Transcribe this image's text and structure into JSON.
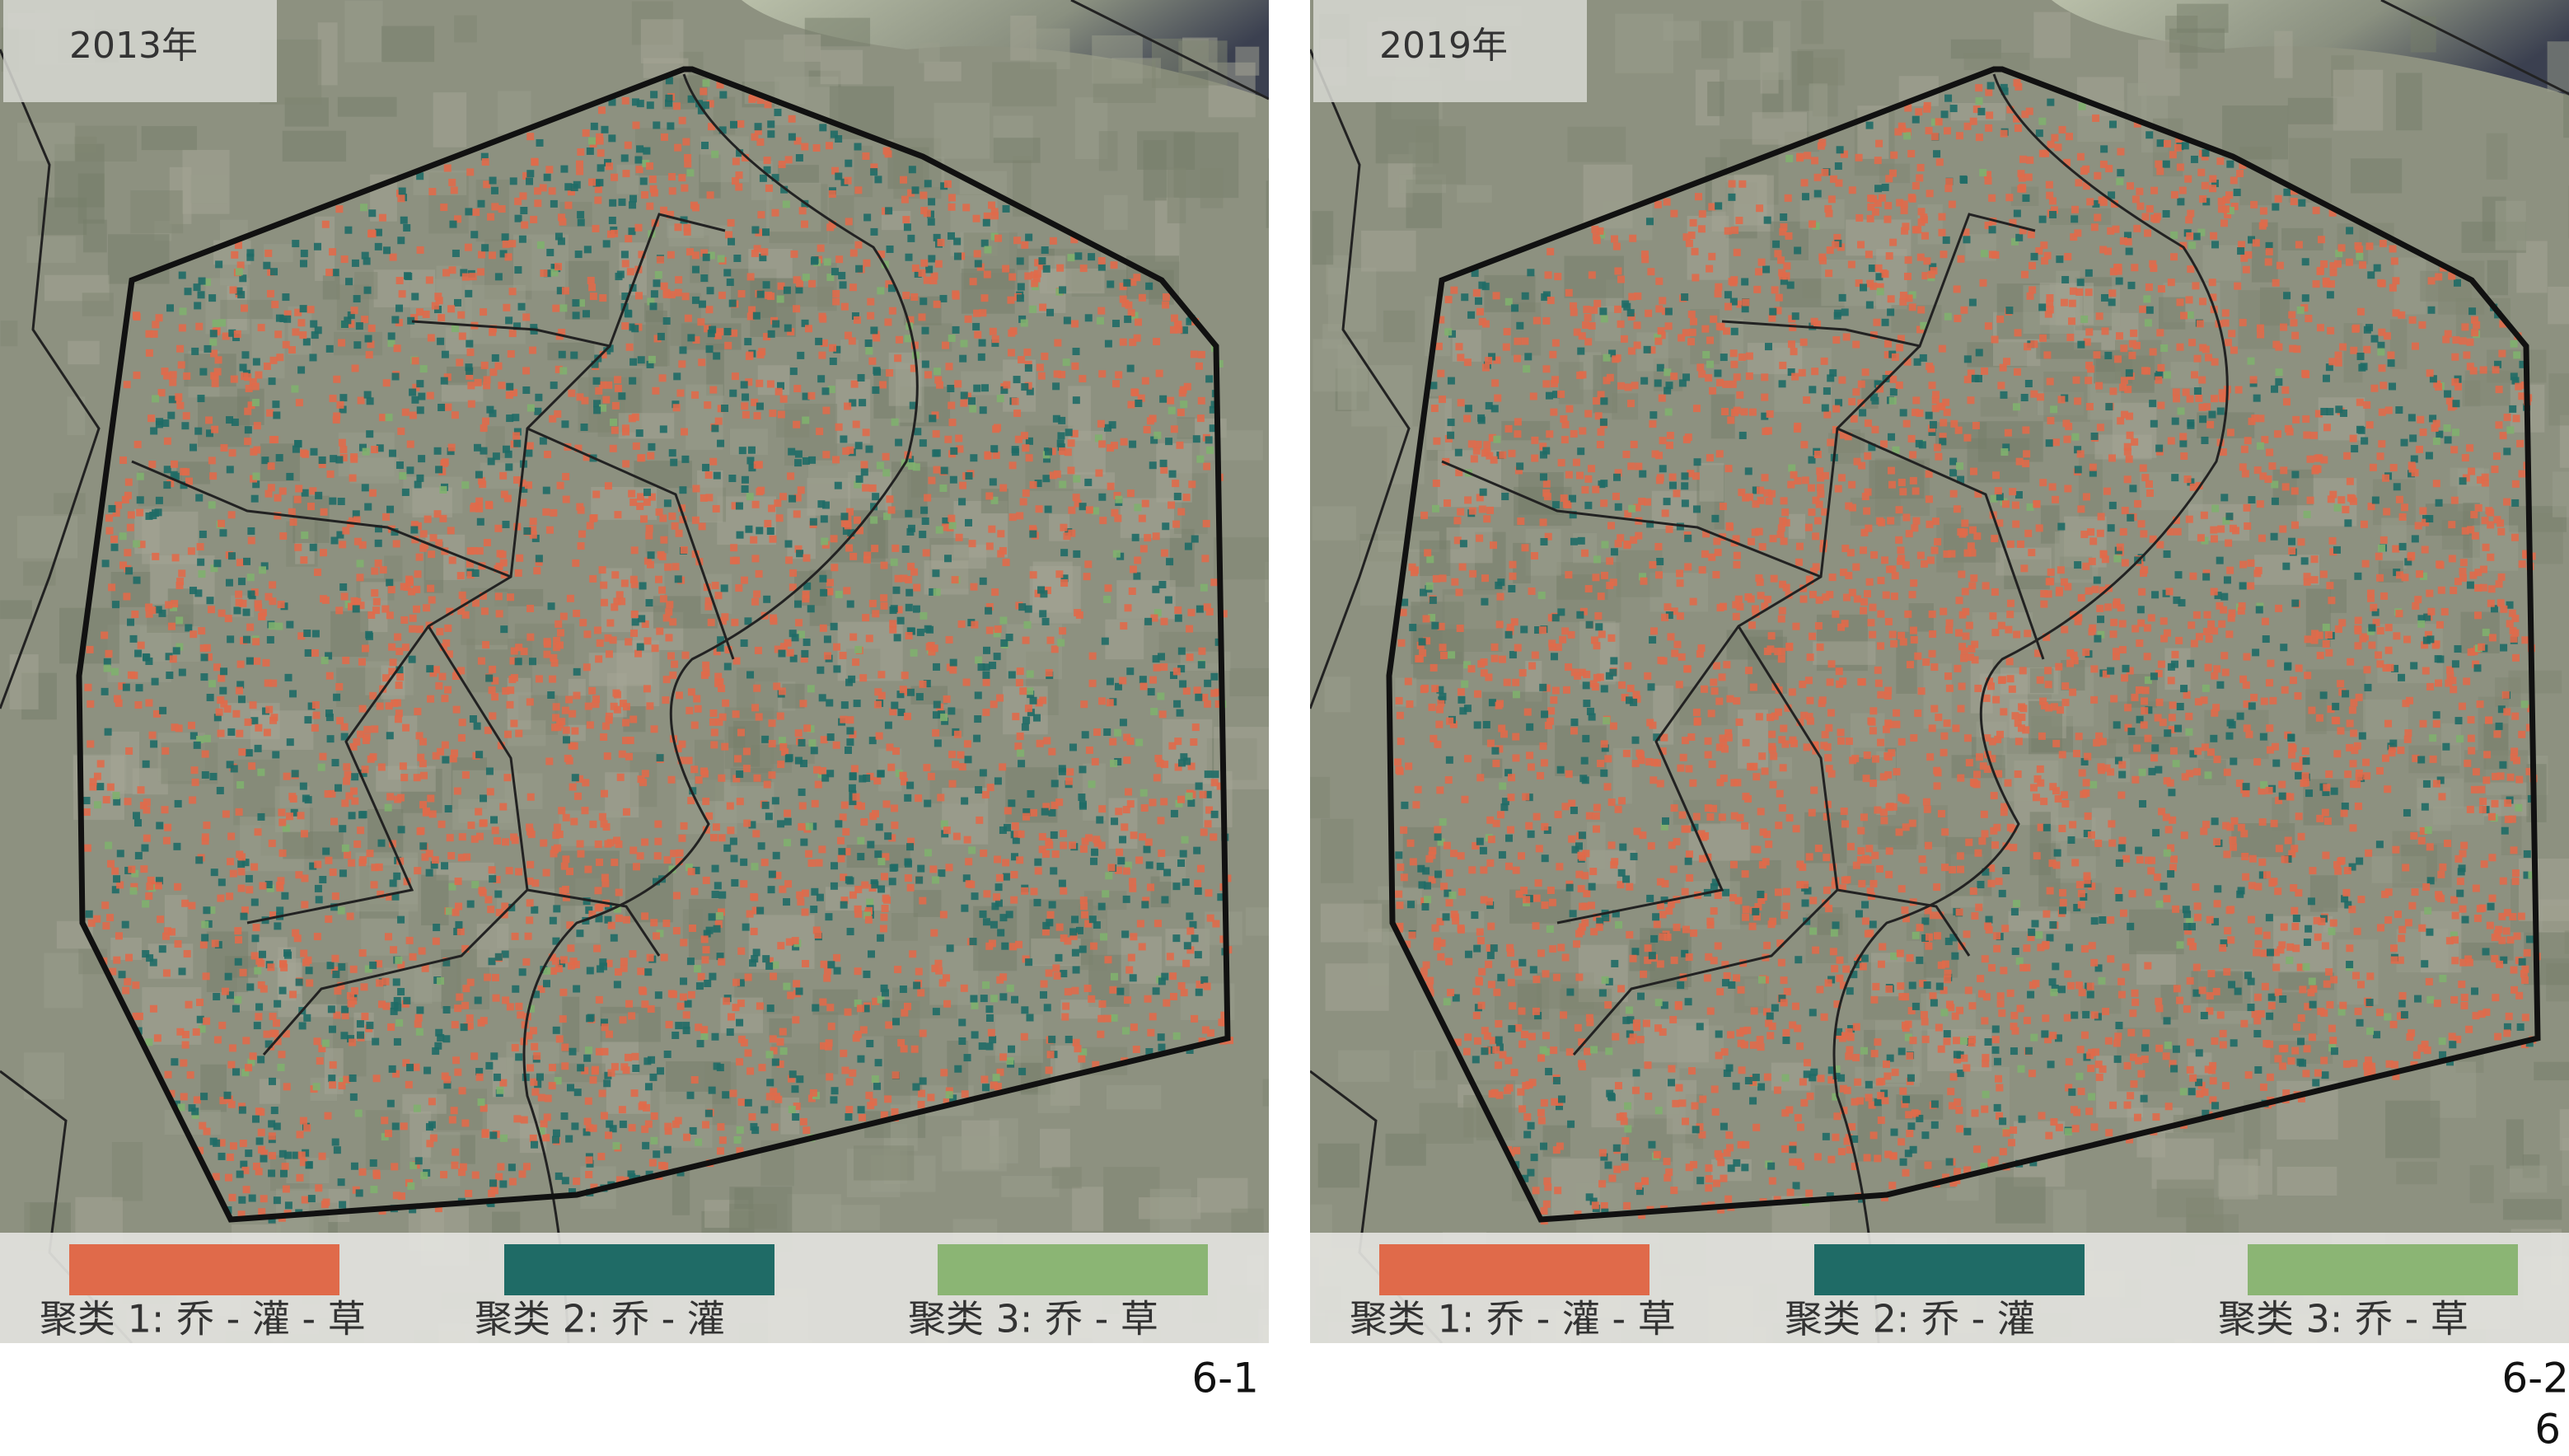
{
  "panels": [
    {
      "year": "2013年",
      "figure_label": "6-1",
      "legend": [
        "聚类 1: 乔 - 灌 - 草",
        "聚类 2: 乔 - 灌",
        "聚类 3: 乔 - 草"
      ]
    },
    {
      "year": "2019年",
      "figure_label": "6-2",
      "legend": [
        "聚类 1: 乔 - 灌 - 草",
        "聚类 2: 乔 - 灌",
        "聚类 3: 乔 - 草"
      ]
    }
  ],
  "footer_label": "6"
}
